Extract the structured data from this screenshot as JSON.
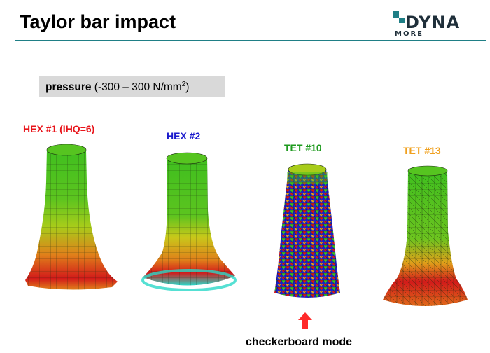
{
  "slide": {
    "title": "Taylor bar impact",
    "logo_text": {
      "main": "DYNA",
      "sub": "MORE"
    }
  },
  "legend": {
    "quantity": "pressure",
    "range_open": "  (-300 – 300 N/mm",
    "unit_exponent": "2",
    "range_close": ")"
  },
  "elements": [
    {
      "label": "HEX #1 (IHQ=6)",
      "color": "#e8141a"
    },
    {
      "label": "HEX #2",
      "color": "#1a1acc"
    },
    {
      "label": "TET #10",
      "color": "#1e9a1e"
    },
    {
      "label": "TET #13",
      "color": "#f0a01e"
    }
  ],
  "annotation": {
    "caption": "checkerboard mode",
    "arrow_color": "#ff2a2a"
  },
  "fringe_colors": {
    "green": "#3fbf1f",
    "yellow_green": "#a8cc1a",
    "orange": "#e0801a",
    "red": "#d21a1a",
    "cyan": "#2ad8c8",
    "blue": "#1a22c8"
  }
}
